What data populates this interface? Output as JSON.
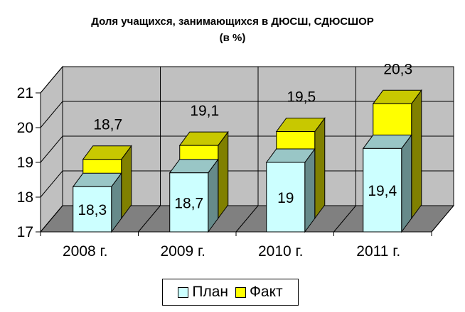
{
  "chart_data": {
    "type": "bar",
    "title": "Доля учащихся, занимающихся в ДЮСШ, СДЮСШОР",
    "subtitle": "(в %)",
    "categories": [
      "2008 г.",
      "2009 г.",
      "2010 г.",
      "2011 г."
    ],
    "series": [
      {
        "name": "План",
        "values": [
          18.3,
          18.7,
          19,
          19.4
        ],
        "labels": [
          "18,3",
          "18,7",
          "19",
          "19,4"
        ],
        "color": "#ccffff"
      },
      {
        "name": "Факт",
        "values": [
          18.7,
          19.1,
          19.5,
          20.3
        ],
        "labels": [
          "18,7",
          "19,1",
          "19,5",
          "20,3"
        ],
        "color": "#ffff00"
      }
    ],
    "yticks": [
      "17",
      "18",
      "19",
      "20",
      "21"
    ],
    "ylim": [
      17,
      21
    ],
    "grid": true,
    "legend": "bottom",
    "style": "3d-bar"
  }
}
